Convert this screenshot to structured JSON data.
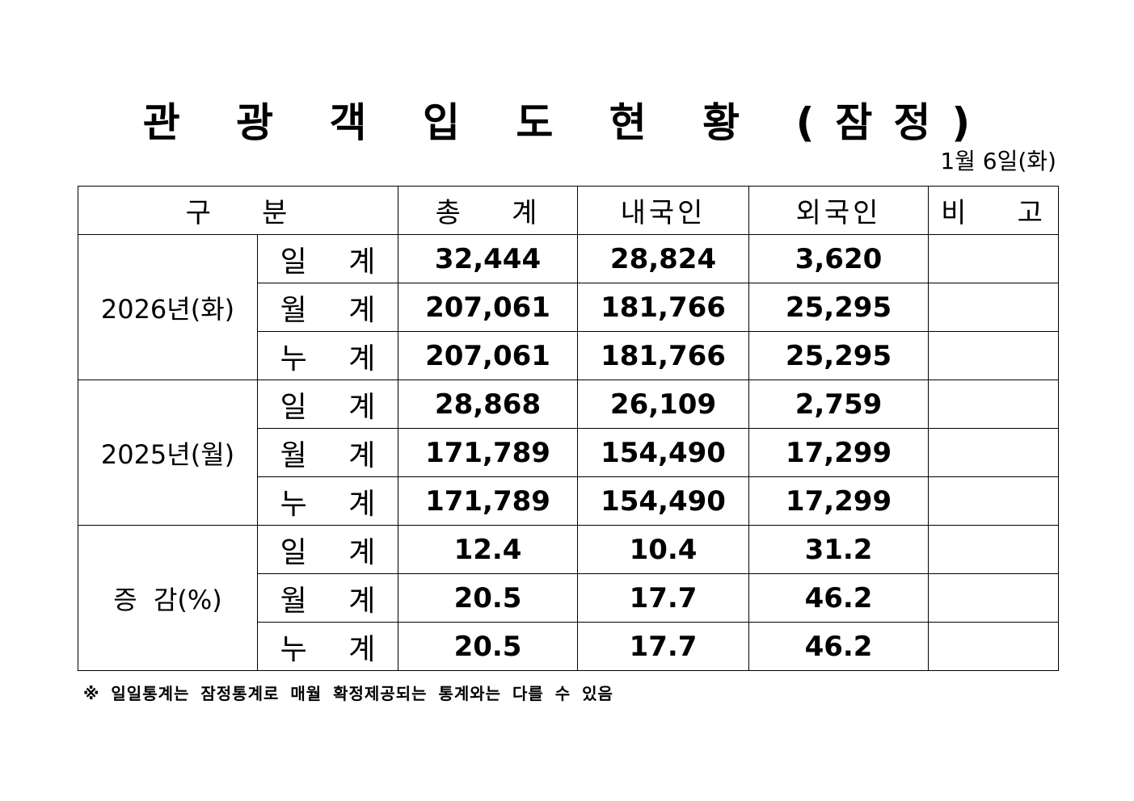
{
  "title": "관 광 객 입 도 현 황 (잠정)",
  "date": "1월  6일(화)",
  "columns": {
    "category": "구    분",
    "total": "총    계",
    "domestic": "내국인",
    "foreign": "외국인",
    "note": "비    고"
  },
  "groups": [
    {
      "label": "2026년(화)",
      "rows": [
        {
          "label": "일 계",
          "total": "32,444",
          "domestic": "28,824",
          "foreign": "3,620",
          "note": ""
        },
        {
          "label": "월 계",
          "total": "207,061",
          "domestic": "181,766",
          "foreign": "25,295",
          "note": ""
        },
        {
          "label": "누 계",
          "total": "207,061",
          "domestic": "181,766",
          "foreign": "25,295",
          "note": ""
        }
      ]
    },
    {
      "label": "2025년(월)",
      "rows": [
        {
          "label": "일 계",
          "total": "28,868",
          "domestic": "26,109",
          "foreign": "2,759",
          "note": ""
        },
        {
          "label": "월 계",
          "total": "171,789",
          "domestic": "154,490",
          "foreign": "17,299",
          "note": ""
        },
        {
          "label": "누 계",
          "total": "171,789",
          "domestic": "154,490",
          "foreign": "17,299",
          "note": ""
        }
      ]
    },
    {
      "label": "증  감(%)",
      "rows": [
        {
          "label": "일 계",
          "total": "12.4",
          "domestic": "10.4",
          "foreign": "31.2",
          "note": ""
        },
        {
          "label": "월 계",
          "total": "20.5",
          "domestic": "17.7",
          "foreign": "46.2",
          "note": ""
        },
        {
          "label": "누 계",
          "total": "20.5",
          "domestic": "17.7",
          "foreign": "46.2",
          "note": ""
        }
      ]
    }
  ],
  "footnote": "※ 일일통계는 잠정통계로 매월 확정제공되는 통계와는 다를 수 있음"
}
